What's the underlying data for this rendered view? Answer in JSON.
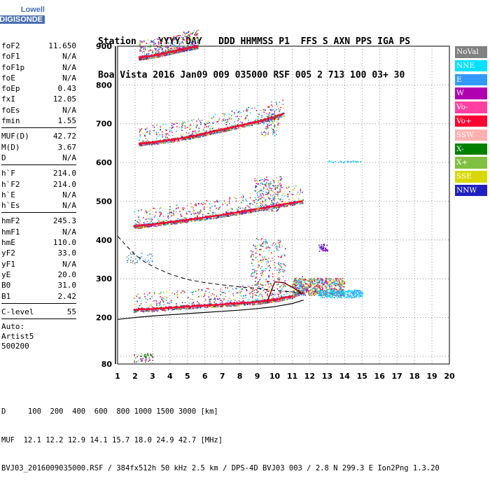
{
  "logo": {
    "line1": "Lowell",
    "line2": "DIGISONDE"
  },
  "header": {
    "row1": "Station    YYYY DAY   DDD HHMMSS P1  FFS S AXN PPS IGA PS",
    "row2": "Boa Vista 2016 Jan09 009 035000 RSF 005 2 713 100 03+ 30"
  },
  "params": {
    "group1": [
      {
        "label": "foF2",
        "value": "11.650"
      },
      {
        "label": "foF1",
        "value": "N/A"
      },
      {
        "label": "foF1p",
        "value": "N/A"
      },
      {
        "label": "foE",
        "value": "N/A"
      },
      {
        "label": "foEp",
        "value": "0.43"
      },
      {
        "label": "fxI",
        "value": "12.05"
      },
      {
        "label": "foEs",
        "value": "N/A"
      },
      {
        "label": "fmin",
        "value": "1.55"
      }
    ],
    "group2": [
      {
        "label": "MUF(D)",
        "value": "42.72"
      },
      {
        "label": "M(D)",
        "value": "3.67"
      },
      {
        "label": "D",
        "value": "N/A"
      }
    ],
    "group3": [
      {
        "label": "h`F",
        "value": "214.0"
      },
      {
        "label": "h`F2",
        "value": "214.0"
      },
      {
        "label": "h`E",
        "value": "N/A"
      },
      {
        "label": "h`Es",
        "value": "N/A"
      }
    ],
    "group4": [
      {
        "label": "hmF2",
        "value": "245.3"
      },
      {
        "label": "hmF1",
        "value": "N/A"
      },
      {
        "label": "hmE",
        "value": "110.0"
      },
      {
        "label": "yF2",
        "value": "33.0"
      },
      {
        "label": "yF1",
        "value": "N/A"
      },
      {
        "label": "yE",
        "value": "20.0"
      },
      {
        "label": "B0",
        "value": "31.0"
      },
      {
        "label": "B1",
        "value": "2.42"
      }
    ],
    "group5": [
      {
        "label": "C-level",
        "value": "55"
      }
    ],
    "auto": [
      "Auto:",
      "Artist5",
      "500200"
    ]
  },
  "legend": [
    {
      "label": "NoVal",
      "color": "#808080"
    },
    {
      "label": "NNE",
      "color": "#00e0ff"
    },
    {
      "label": "E",
      "color": "#3399ff"
    },
    {
      "label": "W",
      "color": "#b000b0"
    },
    {
      "label": "Vo-",
      "color": "#ff40a0"
    },
    {
      "label": "Vo+",
      "color": "#ff0030"
    },
    {
      "label": "SSW",
      "color": "#ffb0b0"
    },
    {
      "label": "X-",
      "color": "#008000"
    },
    {
      "label": "X+",
      "color": "#80c040"
    },
    {
      "label": "SSE",
      "color": "#d8d800"
    },
    {
      "label": "NNW",
      "color": "#2020c0"
    }
  ],
  "footer": {
    "line1": "D     100  200  400  600  800 1000 1500 3000 [km]",
    "line2": "MUF  12.1 12.2 12.9 14.1 15.7 18.0 24.9 42.7 [MHz]",
    "line3": "BVJ03_2016009035000.RSF / 384fx512h 50 kHz 2.5 km / DPS-4D BVJ03 003 / 2.8 N 299.3 E Ion2Png 1.3.20"
  },
  "chart_data": {
    "type": "scatter",
    "xlim": [
      1,
      20
    ],
    "ylim": [
      80,
      900
    ],
    "xticks": [
      1,
      2,
      3,
      4,
      5,
      6,
      7,
      8,
      9,
      10,
      11,
      12,
      13,
      14,
      15,
      16,
      17,
      18,
      19,
      20
    ],
    "yticks": [
      100,
      200,
      300,
      400,
      500,
      600,
      700,
      800,
      900
    ],
    "ytick_labels": [
      "",
      "200",
      "300",
      "400",
      "500",
      "600",
      "700",
      "800",
      "900"
    ],
    "y_extra_labels": [
      {
        "value": 80,
        "label": "80"
      }
    ],
    "grid": true,
    "legend_position": "right",
    "traces": [
      {
        "name": "F2 O-trace",
        "color": "#ff0030",
        "x": [
          1.9,
          3,
          4,
          5,
          6,
          7,
          8,
          9,
          10,
          11,
          11.65
        ],
        "y": [
          220,
          222,
          225,
          228,
          231,
          234,
          237,
          240,
          246,
          255,
          270
        ]
      },
      {
        "name": "F2 2nd hop",
        "color": "#ff0030",
        "x": [
          1.9,
          3,
          4,
          5,
          6,
          7,
          8,
          9,
          10,
          11,
          11.6
        ],
        "y": [
          435,
          440,
          446,
          452,
          458,
          465,
          472,
          480,
          488,
          496,
          500
        ]
      },
      {
        "name": "F2 3rd hop",
        "color": "#ff0030",
        "x": [
          2.2,
          3,
          4,
          5,
          6,
          7,
          8,
          9,
          10,
          10.5
        ],
        "y": [
          648,
          652,
          658,
          665,
          675,
          685,
          695,
          705,
          718,
          725
        ]
      },
      {
        "name": "F2 4th hop",
        "color": "#ff0030",
        "x": [
          2.2,
          3,
          4,
          5,
          5.6
        ],
        "y": [
          870,
          875,
          885,
          895,
          900
        ]
      }
    ],
    "profile_solid": {
      "x": [
        1,
        2,
        3,
        4,
        5,
        6,
        7,
        8,
        9,
        10,
        11,
        11.65
      ],
      "y": [
        195,
        200,
        204,
        207,
        210,
        213,
        216,
        219,
        223,
        228,
        236,
        245
      ]
    },
    "profile_dashed": {
      "x": [
        1,
        1.5,
        2,
        2.5,
        3,
        4,
        5,
        6,
        7,
        8,
        9,
        10,
        10.5,
        11,
        11.65
      ],
      "y": [
        410,
        385,
        362,
        345,
        332,
        312,
        298,
        290,
        284,
        279,
        275,
        270,
        268,
        266,
        262
      ]
    },
    "muf_curve": {
      "x": [
        9.6,
        10,
        10.5,
        11,
        11.5
      ],
      "y": [
        245,
        292,
        290,
        278,
        265
      ]
    }
  }
}
